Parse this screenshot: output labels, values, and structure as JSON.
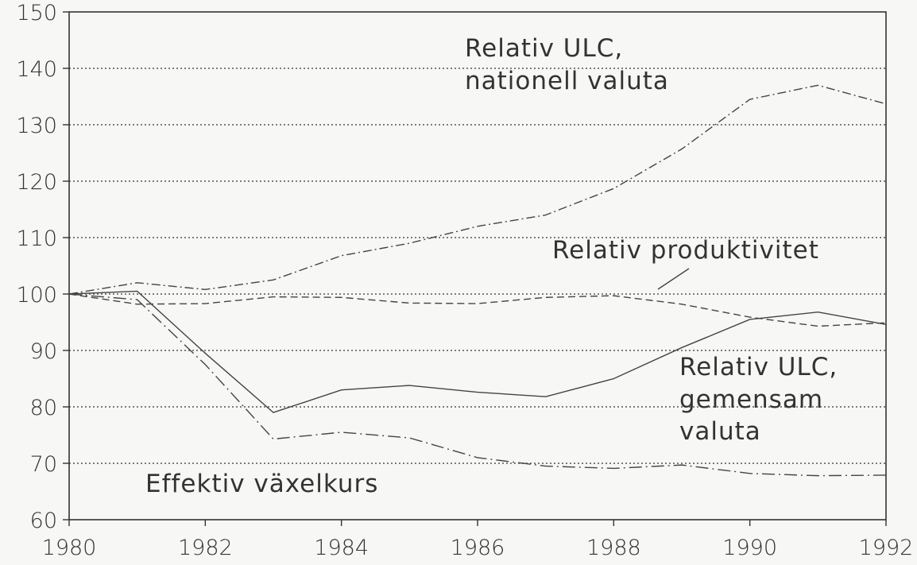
{
  "chart_data": {
    "type": "line",
    "title": "",
    "xlabel": "",
    "ylabel": "",
    "grid": "horizontal dotted",
    "xlim": [
      1980,
      1992
    ],
    "ylim": [
      60,
      150
    ],
    "x_ticks": [
      1980,
      1982,
      1984,
      1986,
      1988,
      1990,
      1992
    ],
    "y_ticks": [
      60,
      70,
      80,
      90,
      100,
      110,
      120,
      130,
      140,
      150
    ],
    "x": [
      1980,
      1981,
      1982,
      1983,
      1984,
      1985,
      1986,
      1987,
      1988,
      1989,
      1990,
      1991,
      1992
    ],
    "series": [
      {
        "name": "Relativ ULC, nationell valuta",
        "style": "dash-dot",
        "values": [
          100,
          102,
          100.8,
          102.5,
          106.8,
          109,
          112,
          114,
          118.7,
          125.7,
          134.5,
          137,
          133.7
        ]
      },
      {
        "name": "Relativ produktivitet",
        "style": "dashed",
        "values": [
          100,
          98.2,
          98.3,
          99.5,
          99.4,
          98.4,
          98.3,
          99.4,
          99.7,
          98.2,
          95.9,
          94.3,
          94.9
        ]
      },
      {
        "name": "Relativ ULC, gemensam valuta",
        "style": "solid",
        "values": [
          100,
          100.5,
          89.5,
          79,
          83,
          83.8,
          82.6,
          81.8,
          85,
          90.5,
          95.5,
          96.8,
          94.6
        ]
      },
      {
        "name": "Effektiv växelkurs",
        "style": "long-dash-dot",
        "values": [
          100,
          99,
          87.5,
          74.3,
          75.5,
          74.5,
          71,
          69.5,
          69.1,
          69.7,
          68.2,
          67.8,
          67.9
        ]
      }
    ],
    "annotations": {
      "ulc_national_1": "Relativ ULC,",
      "ulc_national_2": "nationell valuta",
      "productivity": "Relativ produktivitet",
      "ulc_common_1": "Relativ ULC,",
      "ulc_common_2": "gemensam",
      "ulc_common_3": "valuta",
      "exchange_rate": "Effektiv växelkurs"
    }
  }
}
